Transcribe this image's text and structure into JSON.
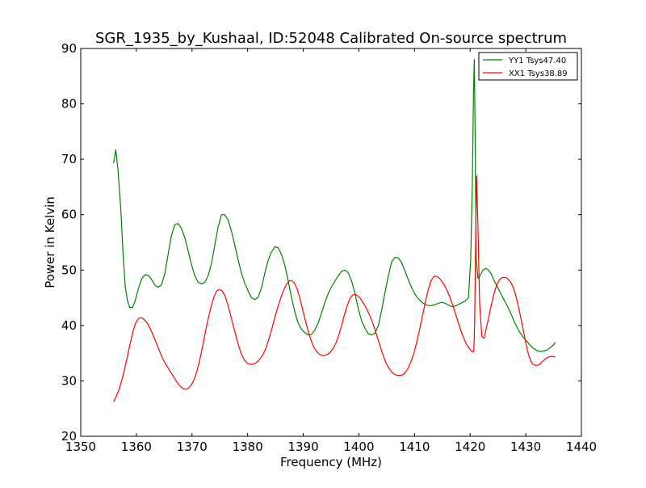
{
  "chart_data": {
    "type": "line",
    "title": "SGR_1935_by_Kushaal, ID:52048 Calibrated On-source spectrum",
    "xlabel": "Frequency (MHz)",
    "ylabel": "Power in Kelvin",
    "xlim": [
      1350,
      1440
    ],
    "ylim": [
      20,
      90
    ],
    "xticks": [
      1350,
      1360,
      1370,
      1380,
      1390,
      1400,
      1410,
      1420,
      1430,
      1440
    ],
    "yticks": [
      20,
      30,
      40,
      50,
      60,
      70,
      80,
      90
    ],
    "xtick_labels": [
      "1350",
      "1360",
      "1370",
      "1380",
      "1390",
      "1400",
      "1410",
      "1420",
      "1430",
      "1440"
    ],
    "ytick_labels": [
      "20",
      "30",
      "40",
      "50",
      "60",
      "70",
      "80",
      "90"
    ],
    "grid": false,
    "legend_position": "top-right",
    "series": [
      {
        "name": "YY1 Tsys47.40",
        "color": "#008000",
        "x": [
          1355.9,
          1356.3,
          1356.7,
          1357.2,
          1357.6,
          1358.0,
          1358.4,
          1358.8,
          1359.3,
          1359.8,
          1360.4,
          1361.0,
          1361.6,
          1362.2,
          1362.8,
          1363.4,
          1363.9,
          1364.5,
          1365.1,
          1365.7,
          1366.3,
          1366.9,
          1367.5,
          1368.1,
          1368.7,
          1369.3,
          1369.9,
          1370.5,
          1371.1,
          1371.7,
          1372.3,
          1372.9,
          1373.5,
          1374.1,
          1374.7,
          1375.3,
          1375.9,
          1376.5,
          1377.1,
          1377.7,
          1378.3,
          1378.9,
          1379.5,
          1380.1,
          1380.7,
          1381.3,
          1381.9,
          1382.5,
          1383.1,
          1383.7,
          1384.3,
          1384.9,
          1385.5,
          1386.1,
          1386.7,
          1387.3,
          1387.9,
          1388.5,
          1389.1,
          1389.7,
          1390.3,
          1390.9,
          1391.5,
          1392.1,
          1392.7,
          1393.3,
          1393.9,
          1394.5,
          1395.1,
          1395.7,
          1396.3,
          1396.9,
          1397.5,
          1398.1,
          1398.7,
          1399.3,
          1399.9,
          1400.5,
          1401.1,
          1401.7,
          1402.3,
          1402.9,
          1403.5,
          1404.1,
          1404.7,
          1405.3,
          1405.9,
          1406.5,
          1407.1,
          1407.7,
          1408.3,
          1408.9,
          1409.5,
          1410.1,
          1410.7,
          1411.3,
          1411.9,
          1412.5,
          1413.1,
          1413.7,
          1414.3,
          1414.9,
          1415.5,
          1416.1,
          1416.7,
          1417.3,
          1417.9,
          1418.5,
          1419.1,
          1419.7,
          1420.1,
          1420.4,
          1420.6,
          1420.75,
          1420.9,
          1421.1,
          1421.4,
          1421.8,
          1422.3,
          1422.8,
          1423.3,
          1423.8,
          1424.3,
          1424.9,
          1425.5,
          1426.1,
          1426.7,
          1427.3,
          1427.9,
          1428.5,
          1429.1,
          1429.7,
          1430.3,
          1430.9,
          1431.5,
          1432.1,
          1432.7,
          1433.3,
          1433.9,
          1434.5,
          1435.0,
          1435.3
        ],
        "y": [
          69.3,
          71.7,
          68.0,
          61.0,
          53.0,
          47.0,
          44.5,
          43.3,
          43.2,
          44.5,
          46.8,
          48.5,
          49.2,
          49.0,
          48.2,
          47.2,
          46.9,
          47.3,
          49.3,
          52.8,
          56.2,
          58.2,
          58.4,
          57.5,
          55.9,
          53.5,
          51.0,
          49.0,
          47.8,
          47.5,
          47.8,
          49.0,
          51.2,
          54.5,
          57.8,
          60.0,
          60.0,
          59.0,
          57.0,
          54.5,
          51.8,
          49.4,
          47.6,
          46.2,
          45.0,
          44.7,
          45.1,
          46.8,
          49.5,
          51.8,
          53.3,
          54.2,
          54.0,
          52.8,
          50.8,
          48.0,
          45.0,
          42.4,
          40.4,
          39.3,
          38.7,
          38.3,
          38.4,
          39.2,
          40.5,
          42.3,
          44.2,
          45.8,
          47.0,
          48.0,
          49.0,
          49.8,
          50.0,
          49.5,
          48.0,
          45.8,
          43.0,
          40.8,
          39.5,
          38.5,
          38.3,
          38.6,
          40.0,
          42.8,
          46.0,
          49.0,
          51.5,
          52.3,
          52.2,
          51.3,
          49.8,
          48.2,
          46.8,
          45.6,
          44.8,
          44.2,
          43.8,
          43.6,
          43.6,
          43.8,
          44.0,
          44.2,
          44.0,
          43.7,
          43.4,
          43.5,
          43.8,
          44.1,
          44.4,
          45.0,
          52.0,
          66.0,
          82.0,
          88.0,
          74.0,
          52.0,
          48.5,
          49.0,
          50.0,
          50.3,
          50.0,
          49.3,
          48.1,
          47.0,
          45.8,
          44.6,
          43.5,
          42.2,
          40.8,
          39.5,
          38.5,
          37.7,
          37.0,
          36.3,
          35.8,
          35.4,
          35.3,
          35.4,
          35.6,
          36.1,
          36.5,
          37.0
        ],
        "legend": "YY1 Tsys47.40"
      },
      {
        "name": "XX1 Tsys38.89",
        "color": "#ff0000",
        "x": [
          1355.9,
          1356.4,
          1356.9,
          1357.4,
          1357.9,
          1358.4,
          1358.9,
          1359.4,
          1359.9,
          1360.4,
          1360.9,
          1361.4,
          1361.9,
          1362.4,
          1362.9,
          1363.4,
          1363.9,
          1364.4,
          1364.9,
          1365.4,
          1365.9,
          1366.4,
          1366.9,
          1367.4,
          1367.9,
          1368.4,
          1368.9,
          1369.4,
          1369.9,
          1370.4,
          1370.9,
          1371.4,
          1371.9,
          1372.4,
          1372.9,
          1373.4,
          1373.9,
          1374.4,
          1374.9,
          1375.4,
          1375.9,
          1376.4,
          1376.9,
          1377.4,
          1377.9,
          1378.4,
          1378.9,
          1379.4,
          1379.9,
          1380.4,
          1380.9,
          1381.4,
          1381.9,
          1382.4,
          1382.9,
          1383.4,
          1383.9,
          1384.4,
          1384.9,
          1385.4,
          1385.9,
          1386.4,
          1386.9,
          1387.4,
          1387.9,
          1388.4,
          1388.9,
          1389.4,
          1389.9,
          1390.4,
          1390.9,
          1391.4,
          1391.9,
          1392.4,
          1392.9,
          1393.4,
          1393.9,
          1394.4,
          1394.9,
          1395.4,
          1395.9,
          1396.4,
          1396.9,
          1397.4,
          1397.9,
          1398.4,
          1398.9,
          1399.4,
          1399.9,
          1400.4,
          1400.9,
          1401.4,
          1401.9,
          1402.4,
          1402.9,
          1403.4,
          1403.9,
          1404.4,
          1404.9,
          1405.4,
          1405.9,
          1406.4,
          1406.9,
          1407.4,
          1407.9,
          1408.4,
          1408.9,
          1409.4,
          1409.9,
          1410.4,
          1410.9,
          1411.4,
          1411.9,
          1412.4,
          1412.9,
          1413.4,
          1413.9,
          1414.4,
          1414.9,
          1415.4,
          1415.9,
          1416.4,
          1416.9,
          1417.4,
          1417.9,
          1418.4,
          1418.9,
          1419.4,
          1419.9,
          1420.2,
          1420.45,
          1420.65,
          1420.8,
          1420.95,
          1421.15,
          1421.4,
          1421.7,
          1422.1,
          1422.5,
          1422.9,
          1423.3,
          1423.7,
          1424.1,
          1424.5,
          1424.9,
          1425.3,
          1425.7,
          1426.1,
          1426.5,
          1426.9,
          1427.3,
          1427.7,
          1428.1,
          1428.5,
          1428.9,
          1429.3,
          1429.7,
          1430.1,
          1430.5,
          1430.9,
          1431.3,
          1431.7,
          1432.1,
          1432.5,
          1432.9,
          1433.3,
          1433.7,
          1434.1,
          1434.5,
          1434.9,
          1435.3
        ],
        "y": [
          26.2,
          27.2,
          28.5,
          30.2,
          32.2,
          34.5,
          36.8,
          39.0,
          40.5,
          41.3,
          41.4,
          41.1,
          40.5,
          39.6,
          38.5,
          37.3,
          36.0,
          34.8,
          33.7,
          32.8,
          32.0,
          31.2,
          30.4,
          29.6,
          29.0,
          28.6,
          28.5,
          28.7,
          29.3,
          30.3,
          31.8,
          33.8,
          36.2,
          38.8,
          41.2,
          43.3,
          45.0,
          46.2,
          46.5,
          46.3,
          45.4,
          43.9,
          42.0,
          40.0,
          38.1,
          36.3,
          34.8,
          33.8,
          33.2,
          33.0,
          33.0,
          33.2,
          33.6,
          34.2,
          35.0,
          36.2,
          37.8,
          39.6,
          41.5,
          43.2,
          44.8,
          46.2,
          47.3,
          48.0,
          48.1,
          47.7,
          46.6,
          44.9,
          42.8,
          40.8,
          38.9,
          37.3,
          36.1,
          35.3,
          34.8,
          34.6,
          34.6,
          34.8,
          35.2,
          35.9,
          36.9,
          38.3,
          40.0,
          41.9,
          43.6,
          44.9,
          45.5,
          45.6,
          45.3,
          44.7,
          43.9,
          43.0,
          41.9,
          40.7,
          39.2,
          37.6,
          36.0,
          34.5,
          33.2,
          32.3,
          31.6,
          31.2,
          31.0,
          31.0,
          31.1,
          31.6,
          32.4,
          33.6,
          35.0,
          37.0,
          39.2,
          41.6,
          44.0,
          46.2,
          47.9,
          48.8,
          48.9,
          48.6,
          48.0,
          47.2,
          46.2,
          45.0,
          43.6,
          42.0,
          40.4,
          38.9,
          37.6,
          36.5,
          35.8,
          35.4,
          35.2,
          35.3,
          40.0,
          52.0,
          67.0,
          58.0,
          44.0,
          38.0,
          37.7,
          39.5,
          41.3,
          43.2,
          45.0,
          46.5,
          47.6,
          48.3,
          48.6,
          48.7,
          48.6,
          48.3,
          47.8,
          47.0,
          45.8,
          44.2,
          42.4,
          40.4,
          38.4,
          36.4,
          34.7,
          33.6,
          33.0,
          32.8,
          32.8,
          33.0,
          33.4,
          33.8,
          34.1,
          34.3,
          34.4,
          34.4,
          34.3
        ],
        "legend": "XX1 Tsys38.89"
      }
    ]
  }
}
